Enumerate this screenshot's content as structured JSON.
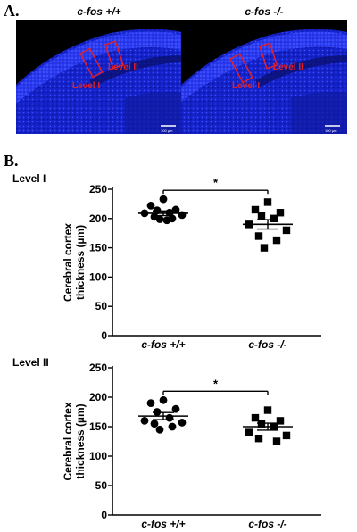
{
  "panel_a": {
    "label": "A.",
    "images": [
      {
        "title": "c-fos +/+",
        "scale_text": "100 µm",
        "regions": [
          {
            "label": "Level I"
          },
          {
            "label": "Level II"
          }
        ]
      },
      {
        "title": "c-fos -/-",
        "scale_text": "100 µm",
        "regions": [
          {
            "label": "Level I"
          },
          {
            "label": "Level II"
          }
        ]
      }
    ],
    "colors": {
      "tissue": "#1a22d6",
      "background": "#000000",
      "roi": "#e0202a"
    }
  },
  "panel_b": {
    "label": "B."
  },
  "chart_data": [
    {
      "type": "scatter",
      "title": "Level I",
      "ylabel": "Cerebral cortex thickness (µm)",
      "ylim": [
        0,
        250
      ],
      "yticks": [
        0,
        50,
        100,
        150,
        200,
        250
      ],
      "categories": [
        "c-fos +/+",
        "c-fos -/-"
      ],
      "series": [
        {
          "category": "c-fos +/+",
          "marker": "circle",
          "values": [
            233,
            222,
            215,
            214,
            210,
            209,
            206,
            203,
            200,
            199,
            197
          ],
          "mean": 209,
          "sem": 4
        },
        {
          "category": "c-fos -/-",
          "marker": "square",
          "values": [
            228,
            215,
            210,
            205,
            200,
            190,
            180,
            170,
            163,
            150
          ],
          "mean": 190,
          "sem": 8
        }
      ],
      "significance": "*"
    },
    {
      "type": "scatter",
      "title": "Level II",
      "ylabel": "Cerebral cortex thickness (µm)",
      "ylim": [
        0,
        250
      ],
      "yticks": [
        0,
        50,
        100,
        150,
        200,
        250
      ],
      "categories": [
        "c-fos +/+",
        "c-fos -/-"
      ],
      "series": [
        {
          "category": "c-fos +/+",
          "marker": "circle",
          "values": [
            195,
            190,
            180,
            175,
            165,
            160,
            157,
            155,
            150,
            145
          ],
          "mean": 168,
          "sem": 6
        },
        {
          "category": "c-fos -/-",
          "marker": "square",
          "values": [
            178,
            165,
            160,
            155,
            150,
            140,
            135,
            130,
            125
          ],
          "mean": 150,
          "sem": 6
        }
      ],
      "significance": "*"
    }
  ]
}
